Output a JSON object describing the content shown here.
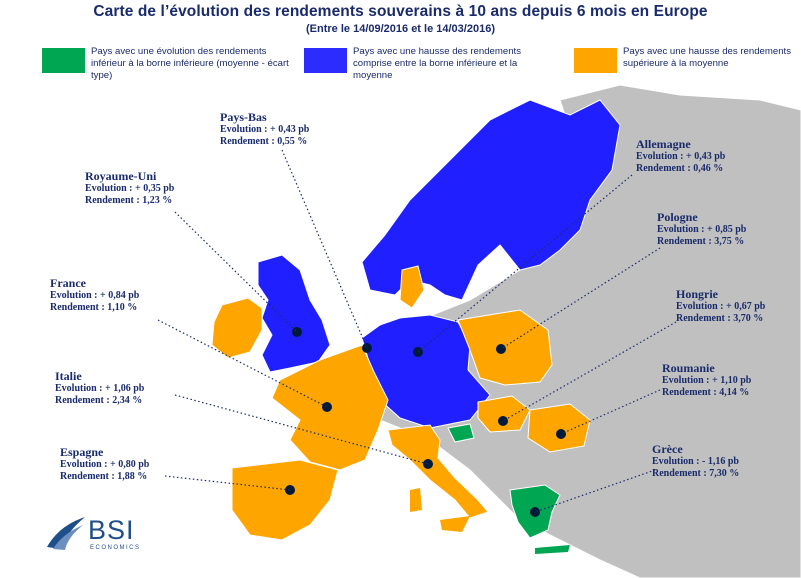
{
  "header": {
    "title": "Carte de l’évolution des rendements souverains à 10 ans depuis 6 mois en Europe",
    "subtitle": "(Entre le 14/09/2016 et le 14/03/2016)"
  },
  "legend": {
    "items": [
      {
        "label": "Pays avec une évolution des rendements inférieur à la borne inférieure (moyenne - écart type)",
        "color": "#00a651"
      },
      {
        "label": "Pays avec une hausse des rendements comprise entre la borne inférieure et la moyenne",
        "color": "#2c2cff"
      },
      {
        "label": "Pays avec une hausse des rendements supérieure à la moyenne",
        "color": "#ffa500"
      }
    ]
  },
  "countries": [
    {
      "name": "Pays-Bas",
      "evolution": "Evolution : + 0,43 pb",
      "rendement": "Rendement : 0,55 %",
      "evolution_pb": 0.43,
      "rendement_pct": 0.55
    },
    {
      "name": "Allemagne",
      "evolution": "Evolution : + 0,43 pb",
      "rendement": "Rendement : 0,46 %",
      "evolution_pb": 0.43,
      "rendement_pct": 0.46
    },
    {
      "name": "Royaume-Uni",
      "evolution": "Evolution : + 0,35 pb",
      "rendement": "Rendement : 1,23 %",
      "evolution_pb": 0.35,
      "rendement_pct": 1.23
    },
    {
      "name": "Pologne",
      "evolution": "Evolution : + 0,85 pb",
      "rendement": "Rendement : 3,75 %",
      "evolution_pb": 0.85,
      "rendement_pct": 3.75
    },
    {
      "name": "France",
      "evolution": "Evolution : + 0,84 pb",
      "rendement": "Rendement : 1,10 %",
      "evolution_pb": 0.84,
      "rendement_pct": 1.1
    },
    {
      "name": "Hongrie",
      "evolution": "Evolution : + 0,67 pb",
      "rendement": "Rendement : 3,70 %",
      "evolution_pb": 0.67,
      "rendement_pct": 3.7
    },
    {
      "name": "Italie",
      "evolution": "Evolution : + 1,06 pb",
      "rendement": "Rendement : 2,34 %",
      "evolution_pb": 1.06,
      "rendement_pct": 2.34
    },
    {
      "name": "Roumanie",
      "evolution": "Evolution : + 1,10 pb",
      "rendement": "Rendement : 4,14 %",
      "evolution_pb": 1.1,
      "rendement_pct": 4.14
    },
    {
      "name": "Espagne",
      "evolution": "Evolution : + 0,80 pb",
      "rendement": "Rendement : 1,88 %",
      "evolution_pb": 0.8,
      "rendement_pct": 1.88
    },
    {
      "name": "Grèce",
      "evolution": "Evolution : - 1,16 pb",
      "rendement": "Rendement : 7,30 %",
      "evolution_pb": -1.16,
      "rendement_pct": 7.3
    }
  ],
  "logo": {
    "name": "BSI",
    "tagline": "ECONOMICS"
  }
}
